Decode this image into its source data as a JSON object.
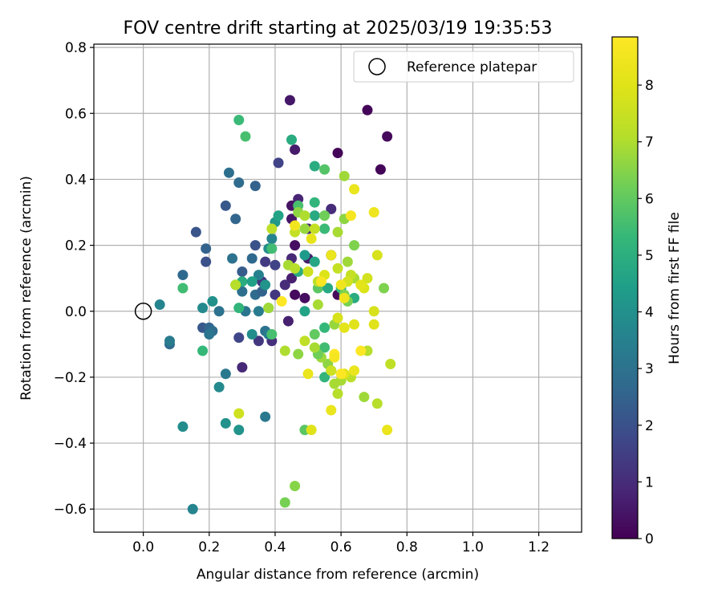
{
  "chart_data": {
    "type": "scatter",
    "title": "FOV centre drift starting at 2025/03/19 19:35:53",
    "xlabel": "Angular distance from reference (arcmin)",
    "ylabel": "Rotation from reference (arcmin)",
    "xlim": [
      -0.15,
      1.33
    ],
    "ylim": [
      -0.67,
      0.81
    ],
    "xticks": [
      0.0,
      0.2,
      0.4,
      0.6,
      0.8,
      1.0,
      1.2
    ],
    "xtick_labels": [
      "0.0",
      "0.2",
      "0.4",
      "0.6",
      "0.8",
      "1.0",
      "1.2"
    ],
    "yticks": [
      -0.6,
      -0.4,
      -0.2,
      0.0,
      0.2,
      0.4,
      0.6,
      0.8
    ],
    "ytick_labels": [
      "−0.6",
      "−0.4",
      "−0.2",
      "0.0",
      "0.2",
      "0.4",
      "0.6",
      "0.8"
    ],
    "grid": true,
    "legend": {
      "position": "upper-right",
      "entries": [
        "Reference platepar"
      ]
    },
    "reference_point": {
      "x": 0.0,
      "y": 0.0,
      "label": "Reference platepar"
    },
    "colorbar": {
      "label": "Hours from first FF file",
      "colormap": "viridis",
      "range": [
        0,
        8.85
      ],
      "ticks": [
        0,
        1,
        2,
        3,
        4,
        5,
        6,
        7,
        8
      ],
      "tick_labels": [
        "0",
        "1",
        "2",
        "3",
        "4",
        "5",
        "6",
        "7",
        "8"
      ]
    },
    "points": [
      {
        "x": 0.445,
        "y": 0.64,
        "h": 0.5
      },
      {
        "x": 0.68,
        "y": 0.61,
        "h": 0.1
      },
      {
        "x": 0.74,
        "y": 0.53,
        "h": 0.2
      },
      {
        "x": 0.46,
        "y": 0.49,
        "h": 0.6
      },
      {
        "x": 0.59,
        "y": 0.48,
        "h": 0.1
      },
      {
        "x": 0.72,
        "y": 0.43,
        "h": 0.1
      },
      {
        "x": 0.41,
        "y": 0.45,
        "h": 1.6
      },
      {
        "x": 0.47,
        "y": 0.34,
        "h": 0.8
      },
      {
        "x": 0.45,
        "y": 0.32,
        "h": 0.4
      },
      {
        "x": 0.57,
        "y": 0.31,
        "h": 1.0
      },
      {
        "x": 0.45,
        "y": 0.28,
        "h": 0.5
      },
      {
        "x": 0.5,
        "y": 0.25,
        "h": 0.9
      },
      {
        "x": 0.46,
        "y": 0.2,
        "h": 0.3
      },
      {
        "x": 0.5,
        "y": 0.16,
        "h": 0.6
      },
      {
        "x": 0.45,
        "y": 0.16,
        "h": 0.9
      },
      {
        "x": 0.57,
        "y": 0.17,
        "h": 0.4
      },
      {
        "x": 0.45,
        "y": 0.1,
        "h": 0.7
      },
      {
        "x": 0.49,
        "y": 0.04,
        "h": 0.3
      },
      {
        "x": 0.46,
        "y": 0.05,
        "h": 0.2
      },
      {
        "x": 0.59,
        "y": 0.05,
        "h": 0.2
      },
      {
        "x": 0.43,
        "y": 0.08,
        "h": 1.0
      },
      {
        "x": 0.4,
        "y": 0.05,
        "h": 1.3
      },
      {
        "x": 0.44,
        "y": -0.03,
        "h": 0.7
      },
      {
        "x": 0.39,
        "y": -0.09,
        "h": 1.1
      },
      {
        "x": 0.35,
        "y": -0.09,
        "h": 1.3
      },
      {
        "x": 0.3,
        "y": -0.17,
        "h": 0.9
      },
      {
        "x": 0.29,
        "y": -0.08,
        "h": 1.7
      },
      {
        "x": 0.37,
        "y": 0.15,
        "h": 1.4
      },
      {
        "x": 0.4,
        "y": 0.14,
        "h": 1.6
      },
      {
        "x": 0.36,
        "y": 0.09,
        "h": 1.2
      },
      {
        "x": 0.34,
        "y": 0.2,
        "h": 2.0
      },
      {
        "x": 0.34,
        "y": 0.38,
        "h": 2.5
      },
      {
        "x": 0.29,
        "y": 0.39,
        "h": 2.8
      },
      {
        "x": 0.26,
        "y": 0.42,
        "h": 2.9
      },
      {
        "x": 0.25,
        "y": 0.32,
        "h": 2.2
      },
      {
        "x": 0.28,
        "y": 0.28,
        "h": 2.6
      },
      {
        "x": 0.16,
        "y": 0.24,
        "h": 2.1
      },
      {
        "x": 0.19,
        "y": 0.19,
        "h": 2.5
      },
      {
        "x": 0.19,
        "y": 0.15,
        "h": 2.0
      },
      {
        "x": 0.27,
        "y": 0.16,
        "h": 3.0
      },
      {
        "x": 0.3,
        "y": 0.12,
        "h": 2.3
      },
      {
        "x": 0.33,
        "y": 0.16,
        "h": 2.7
      },
      {
        "x": 0.12,
        "y": 0.11,
        "h": 2.7
      },
      {
        "x": 0.3,
        "y": 0.06,
        "h": 2.9
      },
      {
        "x": 0.34,
        "y": 0.05,
        "h": 2.8
      },
      {
        "x": 0.36,
        "y": 0.06,
        "h": 2.5
      },
      {
        "x": 0.31,
        "y": 0.0,
        "h": 3.1
      },
      {
        "x": 0.35,
        "y": 0.0,
        "h": 3.3
      },
      {
        "x": 0.23,
        "y": 0.0,
        "h": 3.0
      },
      {
        "x": 0.18,
        "y": -0.05,
        "h": 2.2
      },
      {
        "x": 0.2,
        "y": -0.05,
        "h": 2.6
      },
      {
        "x": 0.21,
        "y": -0.06,
        "h": 2.8
      },
      {
        "x": 0.2,
        "y": -0.07,
        "h": 3.1
      },
      {
        "x": 0.08,
        "y": -0.1,
        "h": 2.8
      },
      {
        "x": 0.08,
        "y": -0.09,
        "h": 3.3
      },
      {
        "x": 0.05,
        "y": 0.02,
        "h": 3.6
      },
      {
        "x": 0.18,
        "y": 0.01,
        "h": 3.8
      },
      {
        "x": 0.21,
        "y": 0.03,
        "h": 4.0
      },
      {
        "x": 0.25,
        "y": -0.19,
        "h": 3.2
      },
      {
        "x": 0.23,
        "y": -0.23,
        "h": 3.8
      },
      {
        "x": 0.25,
        "y": -0.34,
        "h": 4.0
      },
      {
        "x": 0.37,
        "y": -0.32,
        "h": 3.2
      },
      {
        "x": 0.29,
        "y": -0.36,
        "h": 4.1
      },
      {
        "x": 0.12,
        "y": -0.35,
        "h": 3.9
      },
      {
        "x": 0.15,
        "y": -0.6,
        "h": 3.6
      },
      {
        "x": 0.37,
        "y": -0.06,
        "h": 3.0
      },
      {
        "x": 0.38,
        "y": -0.07,
        "h": 3.3
      },
      {
        "x": 0.33,
        "y": -0.07,
        "h": 3.9
      },
      {
        "x": 0.39,
        "y": 0.22,
        "h": 3.6
      },
      {
        "x": 0.38,
        "y": 0.19,
        "h": 3.9
      },
      {
        "x": 0.35,
        "y": 0.11,
        "h": 3.5
      },
      {
        "x": 0.37,
        "y": 0.08,
        "h": 4.1
      },
      {
        "x": 0.4,
        "y": 0.27,
        "h": 4.2
      },
      {
        "x": 0.41,
        "y": 0.29,
        "h": 4.6
      },
      {
        "x": 0.29,
        "y": 0.58,
        "h": 5.4
      },
      {
        "x": 0.31,
        "y": 0.53,
        "h": 5.6
      },
      {
        "x": 0.45,
        "y": 0.52,
        "h": 4.9
      },
      {
        "x": 0.47,
        "y": 0.32,
        "h": 5.6
      },
      {
        "x": 0.52,
        "y": 0.44,
        "h": 4.9
      },
      {
        "x": 0.55,
        "y": 0.43,
        "h": 5.8
      },
      {
        "x": 0.52,
        "y": 0.33,
        "h": 5.2
      },
      {
        "x": 0.52,
        "y": 0.29,
        "h": 4.8
      },
      {
        "x": 0.55,
        "y": 0.25,
        "h": 5.4
      },
      {
        "x": 0.49,
        "y": 0.17,
        "h": 4.3
      },
      {
        "x": 0.52,
        "y": 0.15,
        "h": 4.7
      },
      {
        "x": 0.47,
        "y": 0.12,
        "h": 4.9
      },
      {
        "x": 0.39,
        "y": 0.19,
        "h": 5.5
      },
      {
        "x": 0.3,
        "y": 0.09,
        "h": 4.9
      },
      {
        "x": 0.28,
        "y": 0.08,
        "h": 5.9
      },
      {
        "x": 0.33,
        "y": 0.09,
        "h": 4.5
      },
      {
        "x": 0.38,
        "y": 0.01,
        "h": 5.7
      },
      {
        "x": 0.39,
        "y": -0.07,
        "h": 5.6
      },
      {
        "x": 0.29,
        "y": 0.01,
        "h": 5.2
      },
      {
        "x": 0.12,
        "y": 0.07,
        "h": 5.5
      },
      {
        "x": 0.18,
        "y": -0.12,
        "h": 5.3
      },
      {
        "x": 0.49,
        "y": 0.0,
        "h": 4.6
      },
      {
        "x": 0.52,
        "y": -0.07,
        "h": 6.0
      },
      {
        "x": 0.55,
        "y": -0.05,
        "h": 5.3
      },
      {
        "x": 0.55,
        "y": -0.11,
        "h": 5.5
      },
      {
        "x": 0.55,
        "y": -0.2,
        "h": 5.2
      },
      {
        "x": 0.53,
        "y": 0.07,
        "h": 5.9
      },
      {
        "x": 0.56,
        "y": 0.07,
        "h": 4.8
      },
      {
        "x": 0.6,
        "y": 0.07,
        "h": 5.3
      },
      {
        "x": 0.61,
        "y": 0.05,
        "h": 6.4
      },
      {
        "x": 0.64,
        "y": 0.04,
        "h": 4.9
      },
      {
        "x": 0.57,
        "y": -0.18,
        "h": 5.1
      },
      {
        "x": 0.56,
        "y": -0.16,
        "h": 6.6
      },
      {
        "x": 0.49,
        "y": -0.36,
        "h": 5.9
      },
      {
        "x": 0.43,
        "y": -0.58,
        "h": 6.3
      },
      {
        "x": 0.46,
        "y": -0.53,
        "h": 6.5
      },
      {
        "x": 0.58,
        "y": -0.22,
        "h": 6.9
      },
      {
        "x": 0.54,
        "y": -0.14,
        "h": 6.8
      },
      {
        "x": 0.53,
        "y": -0.13,
        "h": 6.2
      },
      {
        "x": 0.47,
        "y": -0.13,
        "h": 6.6
      },
      {
        "x": 0.43,
        "y": -0.12,
        "h": 7.0
      },
      {
        "x": 0.49,
        "y": -0.09,
        "h": 7.3
      },
      {
        "x": 0.52,
        "y": -0.11,
        "h": 6.9
      },
      {
        "x": 0.58,
        "y": -0.04,
        "h": 6.7
      },
      {
        "x": 0.64,
        "y": 0.2,
        "h": 6.4
      },
      {
        "x": 0.62,
        "y": 0.15,
        "h": 6.8
      },
      {
        "x": 0.61,
        "y": 0.28,
        "h": 6.6
      },
      {
        "x": 0.61,
        "y": 0.41,
        "h": 6.8
      },
      {
        "x": 0.55,
        "y": 0.29,
        "h": 6.2
      },
      {
        "x": 0.49,
        "y": 0.25,
        "h": 6.7
      },
      {
        "x": 0.52,
        "y": 0.25,
        "h": 7.4
      },
      {
        "x": 0.47,
        "y": 0.3,
        "h": 6.6
      },
      {
        "x": 0.49,
        "y": 0.29,
        "h": 7.0
      },
      {
        "x": 0.46,
        "y": 0.24,
        "h": 7.4
      },
      {
        "x": 0.44,
        "y": 0.14,
        "h": 6.9
      },
      {
        "x": 0.46,
        "y": 0.13,
        "h": 7.1
      },
      {
        "x": 0.5,
        "y": 0.12,
        "h": 7.6
      },
      {
        "x": 0.53,
        "y": 0.09,
        "h": 7.2
      },
      {
        "x": 0.39,
        "y": 0.25,
        "h": 7.2
      },
      {
        "x": 0.28,
        "y": 0.08,
        "h": 7.1
      },
      {
        "x": 0.29,
        "y": -0.31,
        "h": 7.6
      },
      {
        "x": 0.38,
        "y": 0.01,
        "h": 6.8
      },
      {
        "x": 0.59,
        "y": 0.24,
        "h": 6.9
      },
      {
        "x": 0.53,
        "y": 0.02,
        "h": 6.9
      },
      {
        "x": 0.64,
        "y": 0.1,
        "h": 6.9
      },
      {
        "x": 0.63,
        "y": 0.11,
        "h": 7.4
      },
      {
        "x": 0.59,
        "y": 0.13,
        "h": 7.4
      },
      {
        "x": 0.62,
        "y": 0.09,
        "h": 7.7
      },
      {
        "x": 0.68,
        "y": 0.1,
        "h": 7.7
      },
      {
        "x": 0.71,
        "y": 0.17,
        "h": 7.8
      },
      {
        "x": 0.73,
        "y": 0.07,
        "h": 6.4
      },
      {
        "x": 0.67,
        "y": 0.07,
        "h": 7.9
      },
      {
        "x": 0.62,
        "y": 0.03,
        "h": 6.3
      },
      {
        "x": 0.59,
        "y": -0.25,
        "h": 7.1
      },
      {
        "x": 0.6,
        "y": -0.21,
        "h": 6.9
      },
      {
        "x": 0.63,
        "y": -0.2,
        "h": 7.2
      },
      {
        "x": 0.67,
        "y": -0.26,
        "h": 6.8
      },
      {
        "x": 0.71,
        "y": -0.28,
        "h": 7.1
      },
      {
        "x": 0.75,
        "y": -0.16,
        "h": 7.3
      },
      {
        "x": 0.68,
        "y": -0.12,
        "h": 7.1
      },
      {
        "x": 0.57,
        "y": -0.18,
        "h": 7.6
      },
      {
        "x": 0.61,
        "y": -0.19,
        "h": 8.0
      },
      {
        "x": 0.64,
        "y": -0.18,
        "h": 8.3
      },
      {
        "x": 0.61,
        "y": -0.05,
        "h": 8.1
      },
      {
        "x": 0.64,
        "y": -0.04,
        "h": 8.0
      },
      {
        "x": 0.7,
        "y": -0.04,
        "h": 8.0
      },
      {
        "x": 0.7,
        "y": 0.0,
        "h": 7.8
      },
      {
        "x": 0.59,
        "y": -0.02,
        "h": 7.8
      },
      {
        "x": 0.55,
        "y": 0.11,
        "h": 7.9
      },
      {
        "x": 0.54,
        "y": 0.09,
        "h": 8.7
      },
      {
        "x": 0.57,
        "y": 0.17,
        "h": 8.3
      },
      {
        "x": 0.6,
        "y": 0.08,
        "h": 8.5
      },
      {
        "x": 0.61,
        "y": 0.04,
        "h": 8.4
      },
      {
        "x": 0.51,
        "y": 0.22,
        "h": 8.2
      },
      {
        "x": 0.46,
        "y": 0.26,
        "h": 8.5
      },
      {
        "x": 0.42,
        "y": 0.03,
        "h": 8.9
      },
      {
        "x": 0.5,
        "y": -0.19,
        "h": 8.3
      },
      {
        "x": 0.51,
        "y": -0.36,
        "h": 8.0
      },
      {
        "x": 0.57,
        "y": -0.3,
        "h": 8.3
      },
      {
        "x": 0.6,
        "y": -0.19,
        "h": 8.9
      },
      {
        "x": 0.58,
        "y": -0.13,
        "h": 8.9
      },
      {
        "x": 0.58,
        "y": -0.14,
        "h": 8.6
      },
      {
        "x": 0.66,
        "y": -0.12,
        "h": 8.9
      },
      {
        "x": 0.74,
        "y": -0.36,
        "h": 8.3
      },
      {
        "x": 0.64,
        "y": 0.37,
        "h": 8.3
      },
      {
        "x": 0.63,
        "y": 0.29,
        "h": 8.6
      },
      {
        "x": 0.7,
        "y": 0.3,
        "h": 8.4
      },
      {
        "x": 0.66,
        "y": 0.08,
        "h": 8.1
      }
    ]
  }
}
